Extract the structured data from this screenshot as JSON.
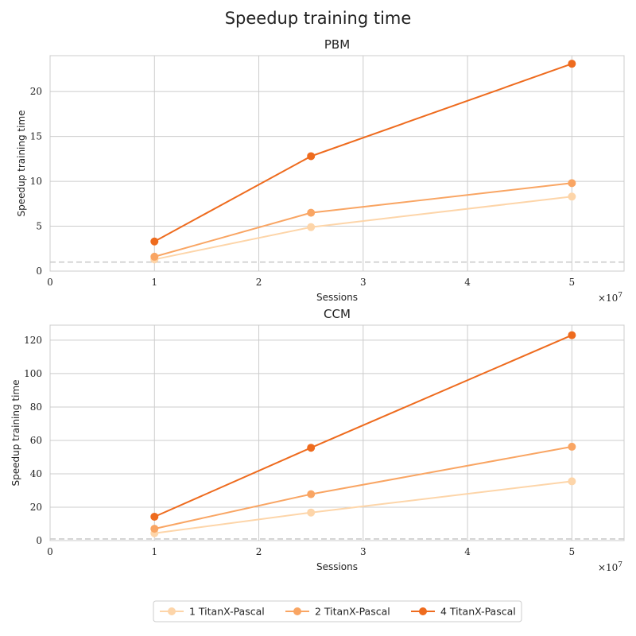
{
  "figure_title": "Speedup training time",
  "x_offset_label": "×10",
  "x_offset_exponent": "7",
  "legend_position": "bottom-center",
  "chart_data": [
    {
      "type": "line",
      "title": "PBM",
      "xlabel": "Sessions",
      "ylabel": "Speedup training time",
      "x": [
        10000000,
        25000000,
        50000000
      ],
      "xlim": [
        0,
        55000000
      ],
      "ylim": [
        0,
        24
      ],
      "xticks": [
        0,
        10000000,
        20000000,
        30000000,
        40000000,
        50000000
      ],
      "xtick_labels": [
        "0",
        "1",
        "2",
        "3",
        "4",
        "5"
      ],
      "yticks": [
        0,
        5,
        10,
        15,
        20
      ],
      "ytick_labels": [
        "0",
        "5",
        "10",
        "15",
        "20"
      ],
      "grid": true,
      "baseline": 1,
      "series": [
        {
          "name": "1 TitanX-Pascal",
          "color": "#fdd5a9",
          "values": [
            1.3,
            4.9,
            8.3
          ]
        },
        {
          "name": "2 TitanX-Pascal",
          "color": "#f9a563",
          "values": [
            1.6,
            6.5,
            9.8
          ]
        },
        {
          "name": "4 TitanX-Pascal",
          "color": "#ee6b1e",
          "values": [
            3.3,
            12.8,
            23.1
          ]
        }
      ]
    },
    {
      "type": "line",
      "title": "CCM",
      "xlabel": "Sessions",
      "ylabel": "Speedup training time",
      "x": [
        10000000,
        25000000,
        50000000
      ],
      "xlim": [
        0,
        55000000
      ],
      "ylim": [
        0,
        129
      ],
      "xticks": [
        0,
        10000000,
        20000000,
        30000000,
        40000000,
        50000000
      ],
      "xtick_labels": [
        "0",
        "1",
        "2",
        "3",
        "4",
        "5"
      ],
      "yticks": [
        0,
        20,
        40,
        60,
        80,
        100,
        120
      ],
      "ytick_labels": [
        "0",
        "20",
        "40",
        "60",
        "80",
        "100",
        "120"
      ],
      "grid": true,
      "baseline": 1,
      "series": [
        {
          "name": "1 TitanX-Pascal",
          "color": "#fdd5a9",
          "values": [
            4.4,
            16.8,
            35.5
          ]
        },
        {
          "name": "2 TitanX-Pascal",
          "color": "#f9a563",
          "values": [
            7.1,
            27.8,
            56.2
          ]
        },
        {
          "name": "4 TitanX-Pascal",
          "color": "#ee6b1e",
          "values": [
            14.3,
            55.6,
            123.0
          ]
        }
      ]
    }
  ],
  "legend": [
    {
      "label": "1 TitanX-Pascal",
      "color": "#fdd5a9"
    },
    {
      "label": "2 TitanX-Pascal",
      "color": "#f9a563"
    },
    {
      "label": "4 TitanX-Pascal",
      "color": "#ee6b1e"
    }
  ]
}
